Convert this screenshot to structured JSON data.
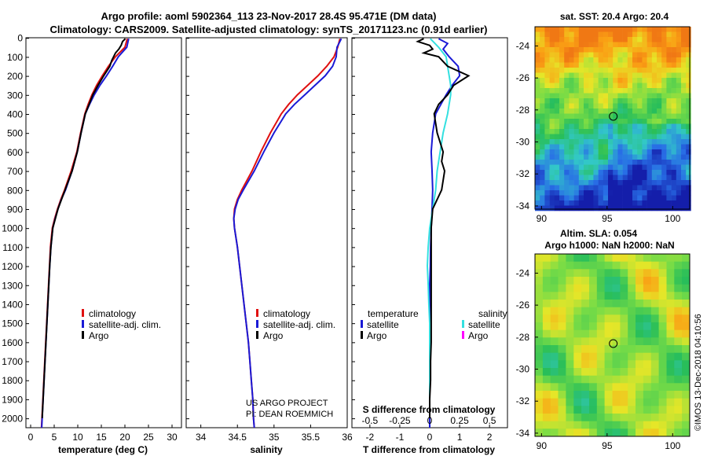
{
  "header": {
    "title_line1": "Argo profile: aoml 5902364_113 23-Nov-2017 28.4S 95.471E (DM data)",
    "title_line2": "Climatology: CARS2009. Satellite-adjusted climatology: synTS_20171123.nc (0.91d earlier)"
  },
  "colors": {
    "climatology": "#e01010",
    "satellite_adj": "#1a1ad6",
    "argo": "#000000",
    "sat_salinity": "#33e0e0",
    "argo_salinity": "#ff00ff"
  },
  "chart_data": [
    {
      "type": "line",
      "id": "temperature",
      "xlabel": "temperature (deg C)",
      "xlim": [
        -1,
        32
      ],
      "xticks": [
        "0",
        "5",
        "10",
        "15",
        "20",
        "25",
        "30"
      ],
      "ylim": [
        2050,
        0
      ],
      "yticks": [
        "0",
        "100",
        "200",
        "300",
        "400",
        "500",
        "600",
        "700",
        "800",
        "900",
        "1000",
        "1100",
        "1200",
        "1300",
        "1400",
        "1500",
        "1600",
        "1700",
        "1800",
        "1900",
        "2000"
      ],
      "legend": [
        "climatology",
        "satellite-adj. clim.",
        "Argo"
      ],
      "series": [
        {
          "name": "climatology",
          "depth": [
            5,
            50,
            100,
            150,
            200,
            250,
            300,
            350,
            400,
            500,
            600,
            700,
            800,
            850,
            900,
            950,
            1000,
            1100,
            1200,
            1300,
            1400,
            1500,
            1600,
            1700,
            1800,
            1900,
            2000,
            2050
          ],
          "values": [
            20.5,
            20.0,
            18.0,
            16.5,
            15.2,
            14.0,
            13.0,
            12.2,
            11.5,
            10.6,
            9.8,
            8.6,
            7.2,
            6.4,
            5.7,
            5.1,
            4.6,
            4.2,
            4.0,
            3.8,
            3.6,
            3.4,
            3.2,
            3.0,
            2.8,
            2.6,
            2.4,
            2.3
          ]
        },
        {
          "name": "satellite-adj. clim.",
          "depth": [
            5,
            50,
            100,
            150,
            200,
            250,
            300,
            350,
            400,
            500,
            600,
            700,
            800,
            850,
            900,
            950,
            1000,
            1100,
            1200,
            1300,
            1400,
            1500,
            1600,
            1700,
            1800,
            1900,
            2000,
            2050
          ],
          "values": [
            20.8,
            20.4,
            18.6,
            17.4,
            16.1,
            14.7,
            13.5,
            12.5,
            11.6,
            10.7,
            9.9,
            8.8,
            7.4,
            6.5,
            5.8,
            5.2,
            4.7,
            4.3,
            4.05,
            3.85,
            3.65,
            3.45,
            3.25,
            3.05,
            2.85,
            2.65,
            2.45,
            2.35
          ]
        },
        {
          "name": "Argo",
          "depth": [
            5,
            20,
            40,
            60,
            80,
            100,
            120,
            150,
            200,
            250,
            300,
            350,
            400,
            500,
            600,
            700,
            800,
            900,
            1000,
            1100,
            1200,
            1300,
            1400,
            1500,
            1600,
            1700,
            1800,
            1900,
            2000
          ],
          "values": [
            20.1,
            19.5,
            19.2,
            18.7,
            18.0,
            17.6,
            17.2,
            16.8,
            15.5,
            14.3,
            13.2,
            12.4,
            11.6,
            10.7,
            9.9,
            8.8,
            7.3,
            5.8,
            4.7,
            4.3,
            4.05,
            3.85,
            3.65,
            3.45,
            3.25,
            3.05,
            2.85,
            2.65,
            2.45
          ]
        }
      ]
    },
    {
      "type": "line",
      "id": "salinity",
      "xlabel": "salinity",
      "xlim": [
        33.8,
        36.0
      ],
      "xticks": [
        "34",
        "34.5",
        "35",
        "35.5",
        "36"
      ],
      "ylim": [
        2050,
        0
      ],
      "legend": [
        "climatology",
        "satellite-adj. clim.",
        "Argo"
      ],
      "series": [
        {
          "name": "climatology",
          "depth": [
            5,
            50,
            100,
            150,
            200,
            250,
            300,
            350,
            400,
            500,
            600,
            700,
            800,
            850,
            900,
            950,
            1000,
            1100,
            1200,
            1300,
            1400,
            1500,
            1600,
            1700,
            1800,
            1900,
            2000,
            2050
          ],
          "values": [
            35.9,
            35.87,
            35.82,
            35.72,
            35.6,
            35.46,
            35.32,
            35.2,
            35.1,
            34.95,
            34.82,
            34.7,
            34.56,
            34.5,
            34.46,
            34.45,
            34.46,
            34.5,
            34.53,
            34.56,
            34.59,
            34.62,
            34.65,
            34.67,
            34.69,
            34.71,
            34.72,
            34.73
          ]
        },
        {
          "name": "satellite-adj. clim.",
          "depth": [
            5,
            50,
            100,
            150,
            200,
            250,
            300,
            350,
            400,
            500,
            600,
            700,
            800,
            850,
            900,
            950,
            1000,
            1100,
            1200,
            1300,
            1400,
            1500,
            1600,
            1700,
            1800,
            1900,
            2000,
            2050
          ],
          "values": [
            35.92,
            35.86,
            35.85,
            35.8,
            35.7,
            35.56,
            35.42,
            35.28,
            35.16,
            35.0,
            34.86,
            34.73,
            34.58,
            34.51,
            34.47,
            34.45,
            34.46,
            34.5,
            34.53,
            34.56,
            34.59,
            34.62,
            34.65,
            34.67,
            34.69,
            34.71,
            34.72,
            34.73
          ]
        }
      ]
    },
    {
      "type": "line",
      "id": "difference",
      "xlabel": "T difference from climatology",
      "xlim": [
        -2.6,
        2.6
      ],
      "xticks": [
        "-2",
        "-1",
        "0",
        "1",
        "2"
      ],
      "top_axis_label": "S difference from climatology",
      "top_ticks": [
        "-0.5",
        "-0.25",
        "0",
        "0.25",
        "0.5"
      ],
      "ylim": [
        2050,
        0
      ],
      "legend_left_title": "temperature",
      "legend_left": [
        "satellite",
        "Argo"
      ],
      "legend_right_title": "salinity",
      "legend_right": [
        "satellite",
        "Argo"
      ],
      "series": [
        {
          "name": "satellite",
          "depth": [
            5,
            30,
            60,
            100,
            150,
            200,
            250,
            300,
            400,
            500,
            600,
            700,
            800,
            900,
            1000,
            1100,
            1200,
            1300,
            1400,
            1500,
            1600,
            1700,
            1800,
            1900,
            2000,
            2050
          ],
          "values": [
            0.3,
            0.6,
            0.45,
            0.65,
            0.95,
            1.0,
            0.75,
            0.55,
            0.2,
            0.1,
            0.05,
            0.08,
            0.1,
            0.08,
            0.05,
            0.03,
            0.02,
            0.0,
            0.0,
            0.0,
            0.0,
            0.0,
            0.0,
            0.0,
            0.0,
            0.0
          ]
        },
        {
          "name": "satellite salinity",
          "depth": [
            5,
            50,
            100,
            150,
            200,
            250,
            300,
            400,
            500,
            600,
            700,
            800,
            900,
            1000,
            1100,
            1200,
            1300,
            1400,
            1500,
            1600,
            1700,
            1800,
            1900
          ],
          "values": [
            0.02,
            0.3,
            0.55,
            0.6,
            0.65,
            0.7,
            0.7,
            0.6,
            0.45,
            0.35,
            0.25,
            0.2,
            0.1,
            0.0,
            -0.05,
            -0.08,
            -0.05,
            -0.03,
            0.0,
            0.0,
            0.0,
            0.0,
            0.0
          ]
        },
        {
          "name": "Argo",
          "depth": [
            5,
            20,
            40,
            60,
            80,
            100,
            150,
            200,
            250,
            300,
            350,
            400,
            450,
            500,
            600,
            650,
            700,
            750,
            800,
            900,
            1000,
            1100,
            1200,
            1300,
            1400,
            1500,
            1600,
            1700,
            1800,
            1900,
            2000
          ],
          "values": [
            -0.2,
            -0.4,
            0.0,
            0.1,
            -0.2,
            0.3,
            0.6,
            1.3,
            0.8,
            0.6,
            0.3,
            0.15,
            0.2,
            0.25,
            0.45,
            0.4,
            0.5,
            0.45,
            0.4,
            0.1,
            0.05,
            0.05,
            0.05,
            0.05,
            0.05,
            0.05,
            0.05,
            0.03,
            0.03,
            0.0,
            0.0
          ]
        }
      ]
    },
    {
      "type": "heatmap",
      "id": "sst",
      "title": "sat. SST: 20.4 Argo: 20.4",
      "xticks": [
        "90",
        "95",
        "100"
      ],
      "yticks": [
        "-24",
        "-26",
        "-28",
        "-30",
        "-32",
        "-34"
      ],
      "marker": {
        "lon": 95.47,
        "lat": -28.4
      }
    },
    {
      "type": "heatmap",
      "id": "sla",
      "title_line1": "Altim. SLA: 0.054",
      "title_line2": "Argo h1000: NaN h2000: NaN",
      "xticks": [
        "90",
        "95",
        "100"
      ],
      "yticks": [
        "-24",
        "-26",
        "-28",
        "-30",
        "-32",
        "-34"
      ],
      "marker": {
        "lon": 95.47,
        "lat": -28.4
      }
    }
  ],
  "credits": {
    "project_line1": "US ARGO PROJECT",
    "project_line2": "PI: DEAN ROEMMICH",
    "stamp": "©IMOS 13-Dec-2018 04:10:56"
  }
}
